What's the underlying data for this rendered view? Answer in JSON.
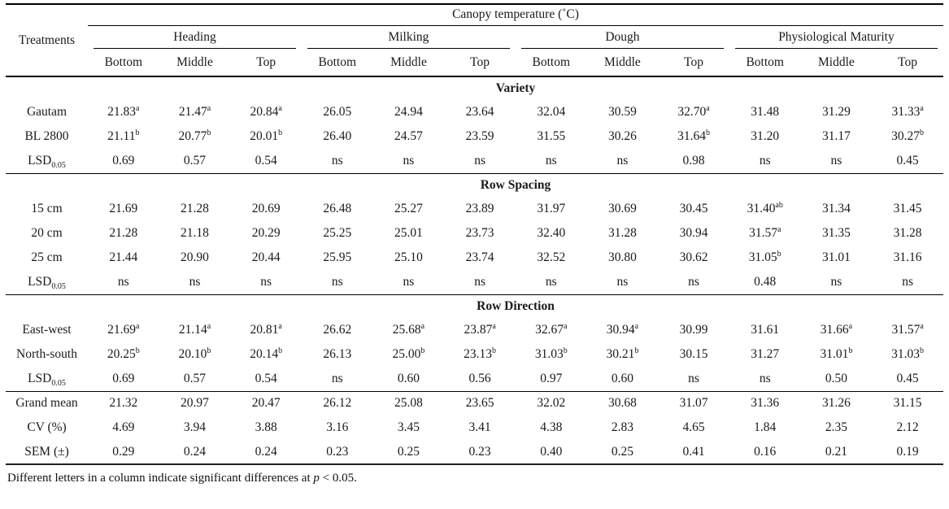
{
  "table": {
    "title": "Canopy temperature (˚C)",
    "col1_header": "Treatments",
    "groups": [
      {
        "label": "Heading"
      },
      {
        "label": "Milking"
      },
      {
        "label": "Dough"
      },
      {
        "label": "Physiological Maturity"
      }
    ],
    "sub_headers": [
      "Bottom",
      "Middle",
      "Top",
      "Bottom",
      "Middle",
      "Top",
      "Bottom",
      "Middle",
      "Top",
      "Bottom",
      "Middle",
      "Top"
    ],
    "sections": [
      {
        "heading": "Variety",
        "rows": [
          {
            "label": "Gautam",
            "cells": [
              "21.83^a",
              "21.47^a",
              "20.84^a",
              "26.05",
              "24.94",
              "23.64",
              "32.04",
              "30.59",
              "32.70^a",
              "31.48",
              "31.29",
              "31.33^a"
            ]
          },
          {
            "label": "BL 2800",
            "cells": [
              "21.11^b",
              "20.77^b",
              "20.01^b",
              "26.40",
              "24.57",
              "23.59",
              "31.55",
              "30.26",
              "31.64^b",
              "31.20",
              "31.17",
              "30.27^b"
            ]
          },
          {
            "label": "LSD",
            "label_sub": "0.05",
            "cells": [
              "0.69",
              "0.57",
              "0.54",
              "ns",
              "ns",
              "ns",
              "ns",
              "ns",
              "0.98",
              "ns",
              "ns",
              "0.45"
            ]
          }
        ]
      },
      {
        "heading": "Row Spacing",
        "rows": [
          {
            "label": "15 cm",
            "cells": [
              "21.69",
              "21.28",
              "20.69",
              "26.48",
              "25.27",
              "23.89",
              "31.97",
              "30.69",
              "30.45",
              "31.40^ab",
              "31.34",
              "31.45"
            ]
          },
          {
            "label": "20 cm",
            "cells": [
              "21.28",
              "21.18",
              "20.29",
              "25.25",
              "25.01",
              "23.73",
              "32.40",
              "31.28",
              "30.94",
              "31.57^a",
              "31.35",
              "31.28"
            ]
          },
          {
            "label": "25 cm",
            "cells": [
              "21.44",
              "20.90",
              "20.44",
              "25.95",
              "25.10",
              "23.74",
              "32.52",
              "30.80",
              "30.62",
              "31.05^b",
              "31.01",
              "31.16"
            ]
          },
          {
            "label": "LSD",
            "label_sub": "0.05",
            "cells": [
              "ns",
              "ns",
              "ns",
              "ns",
              "ns",
              "ns",
              "ns",
              "ns",
              "ns",
              "0.48",
              "ns",
              "ns"
            ]
          }
        ]
      },
      {
        "heading": "Row Direction",
        "rows": [
          {
            "label": "East-west",
            "cells": [
              "21.69^a",
              "21.14^a",
              "20.81^a",
              "26.62",
              "25.68^a",
              "23.87^a",
              "32.67^a",
              "30.94^a",
              "30.99",
              "31.61",
              "31.66^a",
              "31.57^a"
            ]
          },
          {
            "label": "North-south",
            "cells": [
              "20.25^b",
              "20.10^b",
              "20.14^b",
              "26.13",
              "25.00^b",
              "23.13^b",
              "31.03^b",
              "30.21^b",
              "30.15",
              "31.27",
              "31.01^b",
              "31.03^b"
            ]
          },
          {
            "label": "LSD",
            "label_sub": "0.05",
            "cells": [
              "0.69",
              "0.57",
              "0.54",
              "ns",
              "0.60",
              "0.56",
              "0.97",
              "0.60",
              "ns",
              "ns",
              "0.50",
              "0.45"
            ]
          }
        ]
      },
      {
        "heading": null,
        "rows": [
          {
            "label": "Grand mean",
            "cells": [
              "21.32",
              "20.97",
              "20.47",
              "26.12",
              "25.08",
              "23.65",
              "32.02",
              "30.68",
              "31.07",
              "31.36",
              "31.26",
              "31.15"
            ]
          },
          {
            "label": "CV (%)",
            "cells": [
              "4.69",
              "3.94",
              "3.88",
              "3.16",
              "3.45",
              "3.41",
              "4.38",
              "2.83",
              "4.65",
              "1.84",
              "2.35",
              "2.12"
            ]
          },
          {
            "label": "SEM (±)",
            "cells": [
              "0.29",
              "0.24",
              "0.24",
              "0.23",
              "0.25",
              "0.23",
              "0.40",
              "0.25",
              "0.41",
              "0.16",
              "0.21",
              "0.19"
            ]
          }
        ]
      }
    ],
    "footnote": {
      "prefix": "Different letters in a column indicate significant differences at ",
      "italic": "p",
      "suffix": " < 0.05."
    }
  }
}
